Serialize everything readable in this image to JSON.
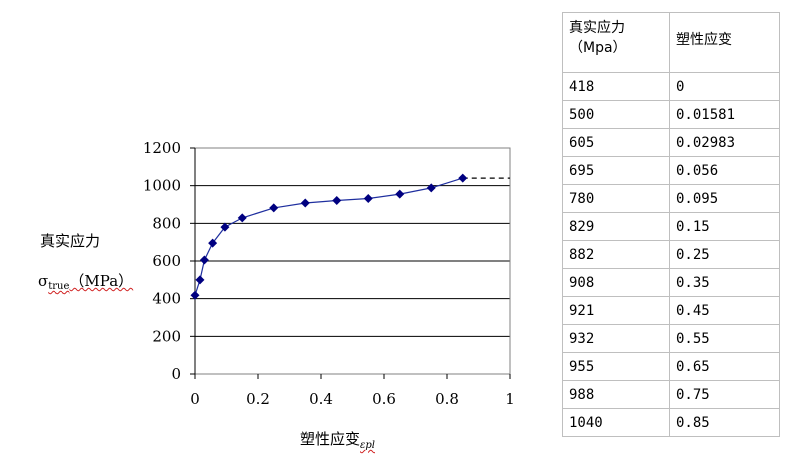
{
  "chart_data": {
    "type": "line",
    "x": [
      0,
      0.01581,
      0.02983,
      0.056,
      0.095,
      0.15,
      0.25,
      0.35,
      0.45,
      0.55,
      0.65,
      0.75,
      0.85
    ],
    "series": [
      {
        "values": [
          418,
          500,
          605,
          695,
          780,
          829,
          882,
          908,
          921,
          932,
          955,
          988,
          1040
        ]
      }
    ],
    "xlim": [
      0,
      1
    ],
    "ylim": [
      0,
      1200
    ],
    "xticks": [
      "0",
      "0.2",
      "0.4",
      "0.6",
      "0.8",
      "1"
    ],
    "yticks": [
      "0",
      "200",
      "400",
      "600",
      "800",
      "1000",
      "1200"
    ],
    "ylabel_line1": "真实应力",
    "ylabel_symbol": "σ",
    "ylabel_sub": "true",
    "ylabel_unit": "（MPa）",
    "xlabel": "塑性应变",
    "xlabel_sub": "ε",
    "xlabel_sub2": "pl",
    "extension": {
      "from_x": 0.85,
      "to_x": 1,
      "y": 1040
    },
    "grid": "horizontal",
    "colors": {
      "line": "#1f2f9f",
      "marker": "#000080",
      "extension": "#000000"
    }
  },
  "table": {
    "header": {
      "col1_line1": "真实应力",
      "col1_line2": "（Mpa）",
      "col2": "塑性应变"
    },
    "rows": [
      [
        "418",
        "0"
      ],
      [
        "500",
        "0.01581"
      ],
      [
        "605",
        "0.02983"
      ],
      [
        "695",
        "0.056"
      ],
      [
        "780",
        "0.095"
      ],
      [
        "829",
        "0.15"
      ],
      [
        "882",
        "0.25"
      ],
      [
        "908",
        "0.35"
      ],
      [
        "921",
        "0.45"
      ],
      [
        "932",
        "0.55"
      ],
      [
        "955",
        "0.65"
      ],
      [
        "988",
        "0.75"
      ],
      [
        "1040",
        "0.85"
      ]
    ]
  }
}
